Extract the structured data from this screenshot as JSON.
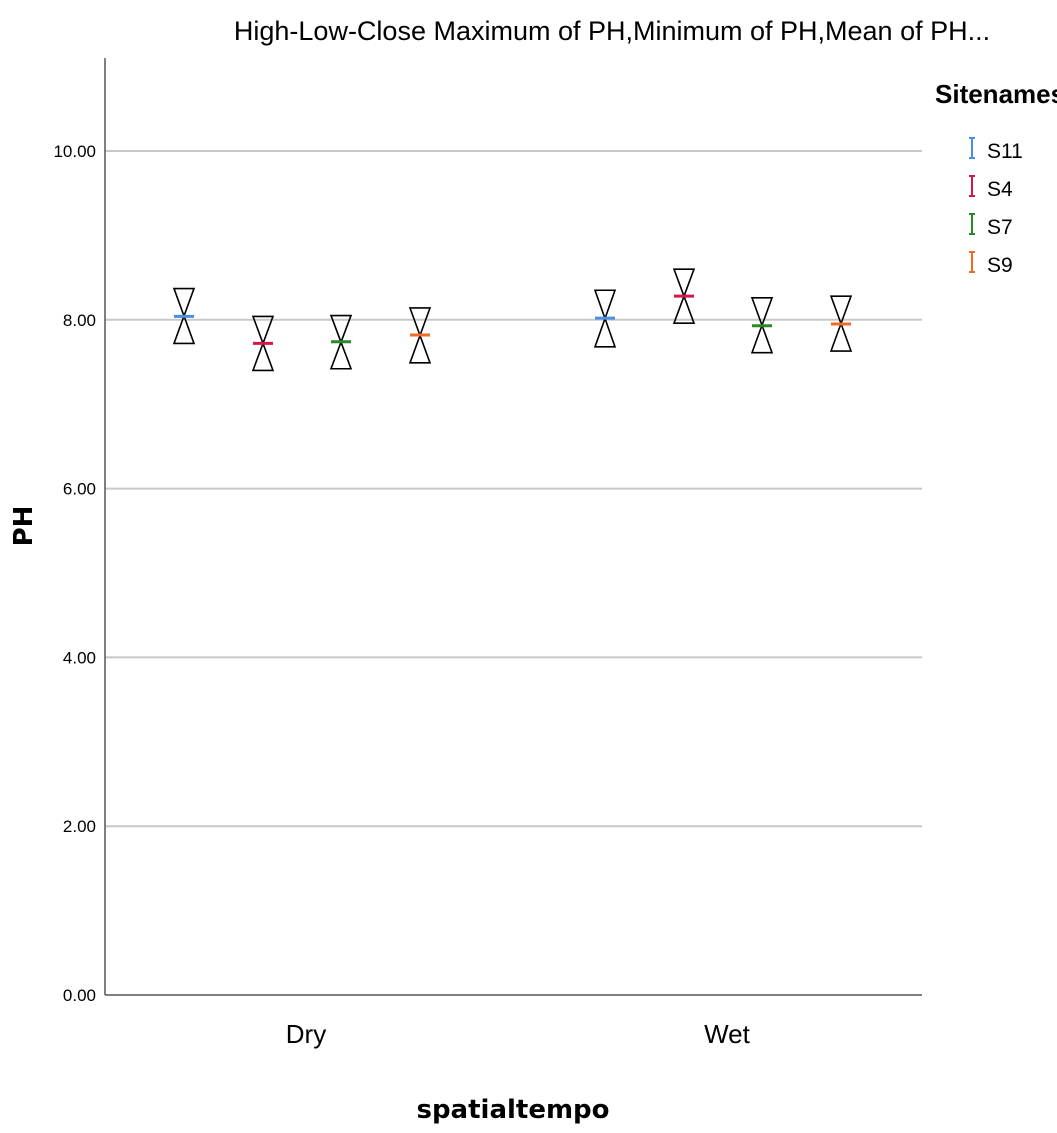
{
  "chart_data": {
    "type": "high-low-close",
    "title": "High-Low-Close Maximum of PH,Minimum of PH,Mean of PH...",
    "xlabel": "spatialtempo",
    "ylabel": "PH",
    "ylim": [
      0,
      11.1
    ],
    "yticks": [
      0,
      2,
      4,
      6,
      8,
      10
    ],
    "ytick_labels": [
      "0.00",
      "2.00",
      "4.00",
      "6.00",
      "8.00",
      "10.00"
    ],
    "grid": true,
    "categories": [
      "Dry",
      "Wet"
    ],
    "legend": {
      "title": "Sitenames",
      "position": "right"
    },
    "series": [
      {
        "name": "S11",
        "color": "#4a8fe0",
        "high": [
          8.37,
          8.35
        ],
        "low": [
          7.72,
          7.68
        ],
        "close": [
          8.04,
          8.02
        ]
      },
      {
        "name": "S4",
        "color": "#d6174a",
        "high": [
          8.04,
          8.6
        ],
        "low": [
          7.4,
          7.96
        ],
        "close": [
          7.72,
          8.28
        ]
      },
      {
        "name": "S7",
        "color": "#2a8a2a",
        "high": [
          8.05,
          8.26
        ],
        "low": [
          7.42,
          7.61
        ],
        "close": [
          7.74,
          7.93
        ]
      },
      {
        "name": "S9",
        "color": "#f26a2a",
        "high": [
          8.14,
          8.28
        ],
        "low": [
          7.49,
          7.63
        ],
        "close": [
          7.82,
          7.95
        ]
      }
    ]
  }
}
